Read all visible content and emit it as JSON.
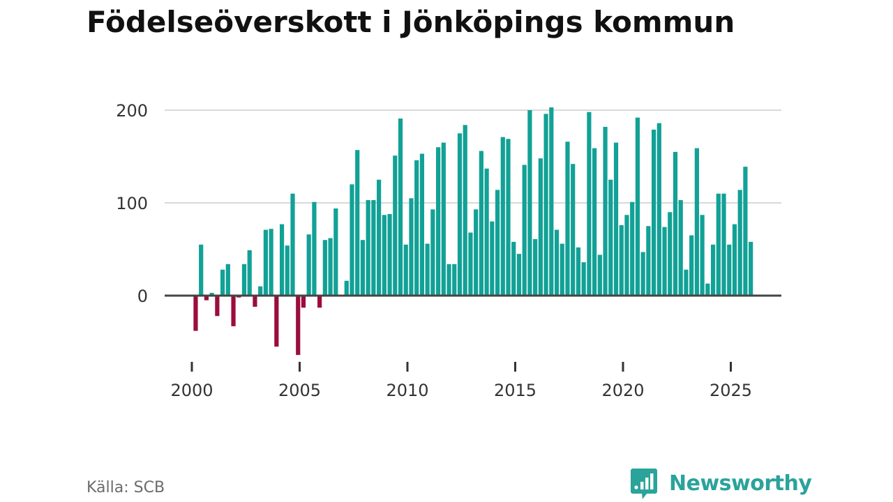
{
  "colors": {
    "positive": "#12a196",
    "negative": "#9b0d3d",
    "brand": "#2aa39b",
    "grid": "#d9d9d9",
    "zero_line": "#444444"
  },
  "chart_data": {
    "type": "bar",
    "title": "Födelseöverskott i Jönköpings kommun",
    "xlabel": "",
    "ylabel": "",
    "ylim": [
      -68,
      206
    ],
    "yticks": [
      0,
      100,
      200
    ],
    "ytick_labels": [
      "0",
      "100",
      "200"
    ],
    "xticks": [
      2000,
      2005,
      2010,
      2015,
      2020,
      2025
    ],
    "xtick_labels": [
      "2000",
      "2005",
      "2010",
      "2015",
      "2020",
      "2025"
    ],
    "frequency": "quarterly",
    "start": 2000.25,
    "step": 0.25,
    "values": [
      -38,
      55,
      -5,
      3,
      -22,
      28,
      34,
      -33,
      -2,
      34,
      49,
      -12,
      10,
      71,
      72,
      -55,
      77,
      54,
      110,
      -64,
      -13,
      66,
      101,
      -13,
      60,
      62,
      94,
      1,
      16,
      120,
      157,
      60,
      103,
      103,
      125,
      87,
      88,
      151,
      191,
      55,
      105,
      146,
      153,
      56,
      93,
      160,
      165,
      34,
      34,
      175,
      184,
      68,
      93,
      156,
      137,
      80,
      114,
      171,
      169,
      58,
      45,
      141,
      200,
      61,
      148,
      196,
      203,
      71,
      56,
      166,
      142,
      52,
      36,
      198,
      159,
      44,
      182,
      125,
      165,
      76,
      87,
      101,
      192,
      47,
      75,
      179,
      186,
      74,
      90,
      155,
      103,
      28,
      65,
      159,
      87,
      13,
      55,
      110,
      110,
      55,
      77,
      114,
      139,
      58
    ]
  },
  "footer": {
    "source": "Källa: SCB",
    "brand_name": "Newsworthy"
  }
}
